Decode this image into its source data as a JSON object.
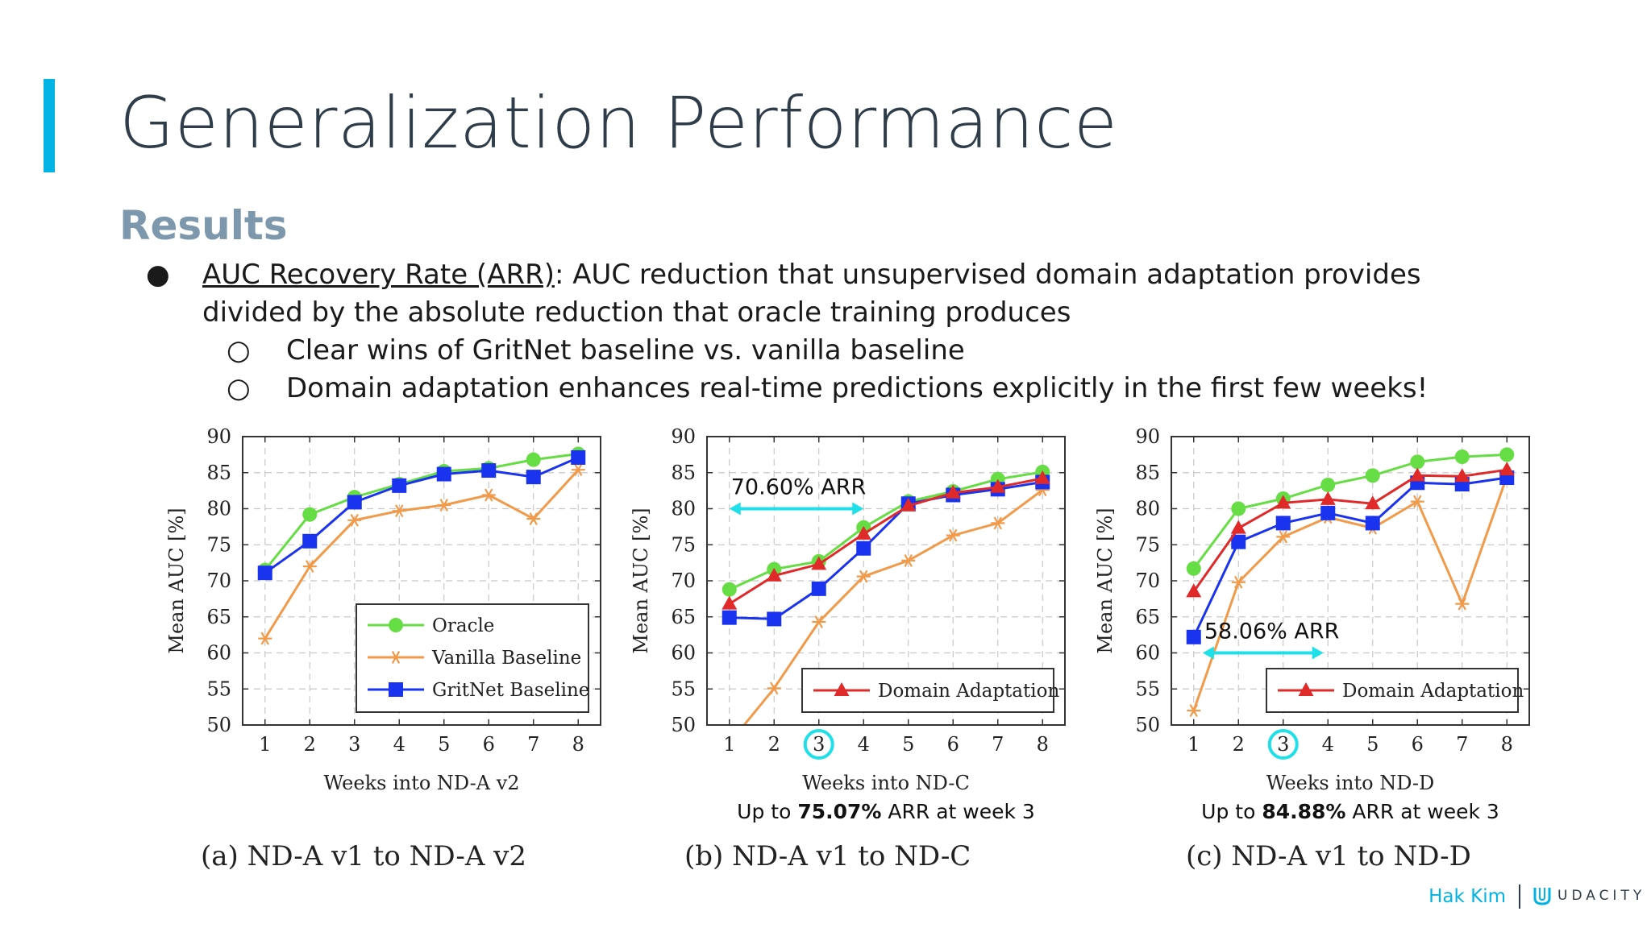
{
  "slide": {
    "title": "Generalization Performance",
    "subtitle": "Results",
    "bullets": {
      "term": "AUC Recovery Rate (ARR)",
      "definition": ": AUC reduction that unsupervised domain adaptation provides divided by the absolute reduction that oracle training produces",
      "sub": [
        "Clear wins of GritNet baseline vs. vanilla baseline",
        "Domain adaptation enhances real-time predictions explicitly in the first few weeks!"
      ]
    },
    "footer": {
      "author": "Hak Kim",
      "logo": "UDACITY"
    },
    "colors": {
      "accent": "#02b3e4",
      "oracle": "#66dd44",
      "vanilla": "#f09a4a",
      "gritnet": "#1a33ee",
      "domain_adaptation": "#e02a2a",
      "annotation": "#1fe0e8"
    }
  },
  "chart_data": [
    {
      "type": "line",
      "caption": "(a) ND-A v1 to ND-A v2",
      "xlabel": "Weeks into ND-A v2",
      "ylabel": "Mean AUC [%]",
      "x": [
        1,
        2,
        3,
        4,
        5,
        6,
        7,
        8
      ],
      "xlim": [
        0.5,
        8.5
      ],
      "ylim": [
        50,
        90
      ],
      "yticks": [
        50,
        55,
        60,
        65,
        70,
        75,
        80,
        85,
        90
      ],
      "grid": true,
      "legend": "bottom-right",
      "series": [
        {
          "name": "Oracle",
          "values": [
            71.5,
            79.2,
            81.6,
            83.4,
            85.2,
            85.6,
            86.8,
            87.6
          ]
        },
        {
          "name": "Vanilla Baseline",
          "values": [
            62.0,
            72.0,
            78.4,
            79.7,
            80.5,
            81.9,
            78.6,
            85.4
          ]
        },
        {
          "name": "GritNet Baseline",
          "values": [
            71.1,
            75.5,
            80.9,
            83.2,
            84.8,
            85.3,
            84.4,
            87.1
          ]
        }
      ]
    },
    {
      "type": "line",
      "caption": "(b) ND-A v1 to ND-C",
      "xlabel": "Weeks into ND-C",
      "ylabel": "Mean AUC [%]",
      "x": [
        1,
        2,
        3,
        4,
        5,
        6,
        7,
        8
      ],
      "xlim": [
        0.5,
        8.5
      ],
      "ylim": [
        50,
        90
      ],
      "yticks": [
        50,
        55,
        60,
        65,
        70,
        75,
        80,
        85,
        90
      ],
      "grid": true,
      "legend": "bottom-right",
      "highlight_week": 3,
      "arr_label": "70.60% ARR",
      "arr_span": [
        1,
        4
      ],
      "arr_y": 80,
      "note_prefix": "Up to ",
      "note_value": "75.07%",
      "note_suffix": " ARR at week 3",
      "series": [
        {
          "name": "Oracle",
          "values": [
            68.8,
            71.6,
            72.7,
            77.4,
            81.0,
            82.4,
            84.1,
            85.1
          ]
        },
        {
          "name": "Vanilla Baseline",
          "values": [
            47.5,
            55.1,
            64.3,
            70.6,
            72.8,
            76.3,
            78.0,
            82.6
          ]
        },
        {
          "name": "GritNet Baseline",
          "values": [
            64.9,
            64.7,
            68.9,
            74.5,
            80.7,
            81.9,
            82.7,
            83.7
          ]
        },
        {
          "name": "Domain Adaptation",
          "values": [
            66.8,
            70.7,
            72.3,
            76.5,
            80.4,
            82.2,
            83.0,
            84.2
          ]
        }
      ]
    },
    {
      "type": "line",
      "caption": "(c) ND-A v1 to ND-D",
      "xlabel": "Weeks into ND-D",
      "ylabel": "Mean AUC [%]",
      "x": [
        1,
        2,
        3,
        4,
        5,
        6,
        7,
        8
      ],
      "xlim": [
        0.5,
        8.5
      ],
      "ylim": [
        50,
        90
      ],
      "yticks": [
        50,
        55,
        60,
        65,
        70,
        75,
        80,
        85,
        90
      ],
      "grid": true,
      "legend": "bottom-right",
      "highlight_week": 3,
      "arr_label": "58.06% ARR",
      "arr_span": [
        1.2,
        3.9
      ],
      "arr_y": 60,
      "note_prefix": "Up to ",
      "note_value": "84.88%",
      "note_suffix": " ARR at week 3",
      "series": [
        {
          "name": "Oracle",
          "values": [
            71.7,
            80.0,
            81.4,
            83.3,
            84.6,
            86.5,
            87.2,
            87.5
          ]
        },
        {
          "name": "Vanilla Baseline",
          "values": [
            52.0,
            69.8,
            76.1,
            78.8,
            77.3,
            81.0,
            66.8,
            84.5
          ]
        },
        {
          "name": "GritNet Baseline",
          "values": [
            62.2,
            75.4,
            78.0,
            79.4,
            78.0,
            83.6,
            83.4,
            84.3
          ]
        },
        {
          "name": "Domain Adaptation",
          "values": [
            68.5,
            77.3,
            80.8,
            81.3,
            80.7,
            84.6,
            84.5,
            85.4
          ]
        }
      ]
    }
  ]
}
